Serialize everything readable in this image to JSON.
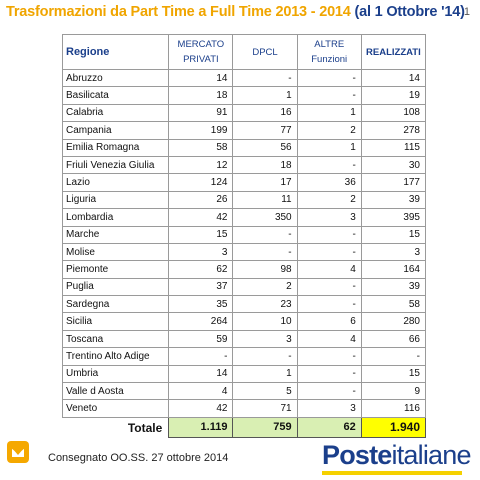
{
  "header": {
    "title": "Trasformazioni da Part Time a Full Time 2013 - 2014",
    "title_suffix": " (al 1 Ottobre '14)",
    "page_number": "1"
  },
  "table": {
    "columns": [
      "Regione",
      "MERCATO PRIVATI",
      "DPCL",
      "ALTRE Funzioni",
      "REALIZZATI"
    ],
    "rows": [
      [
        "Abruzzo",
        "14",
        "-",
        "-",
        "14"
      ],
      [
        "Basilicata",
        "18",
        "1",
        "-",
        "19"
      ],
      [
        "Calabria",
        "91",
        "16",
        "1",
        "108"
      ],
      [
        "Campania",
        "199",
        "77",
        "2",
        "278"
      ],
      [
        "Emilia Romagna",
        "58",
        "56",
        "1",
        "115"
      ],
      [
        "Friuli Venezia Giulia",
        "12",
        "18",
        "-",
        "30"
      ],
      [
        "Lazio",
        "124",
        "17",
        "36",
        "177"
      ],
      [
        "Liguria",
        "26",
        "11",
        "2",
        "39"
      ],
      [
        "Lombardia",
        "42",
        "350",
        "3",
        "395"
      ],
      [
        "Marche",
        "15",
        "-",
        "-",
        "15"
      ],
      [
        "Molise",
        "3",
        "-",
        "-",
        "3"
      ],
      [
        "Piemonte",
        "62",
        "98",
        "4",
        "164"
      ],
      [
        "Puglia",
        "37",
        "2",
        "-",
        "39"
      ],
      [
        "Sardegna",
        "35",
        "23",
        "-",
        "58"
      ],
      [
        "Sicilia",
        "264",
        "10",
        "6",
        "280"
      ],
      [
        "Toscana",
        "59",
        "3",
        "4",
        "66"
      ],
      [
        "Trentino Alto Adige",
        "-",
        "-",
        "-",
        "-"
      ],
      [
        "Umbria",
        "14",
        "1",
        "-",
        "15"
      ],
      [
        "Valle d Aosta",
        "4",
        "5",
        "-",
        "9"
      ],
      [
        "Veneto",
        "42",
        "71",
        "3",
        "116"
      ]
    ],
    "total": {
      "label": "Totale",
      "mercato_privati": "1.119",
      "dpcl": "759",
      "altre_funzioni": "62",
      "realizzati": "1.940"
    }
  },
  "footer": {
    "text": "Consegnato OO.SS. 27 ottobre 2014",
    "icon": "poste-envelope-icon",
    "logo_bold": "Poste",
    "logo_regular": "italiane"
  },
  "colors": {
    "title": "#f0a500",
    "title_suffix": "#1b3f8b",
    "header_text": "#1b3f8b",
    "total_green": "#d9efb3",
    "total_highlight": "#ffff00",
    "logo": "#1b3f8b",
    "logo_bar": "#f5d100",
    "icon_bg": "#f5a800"
  }
}
